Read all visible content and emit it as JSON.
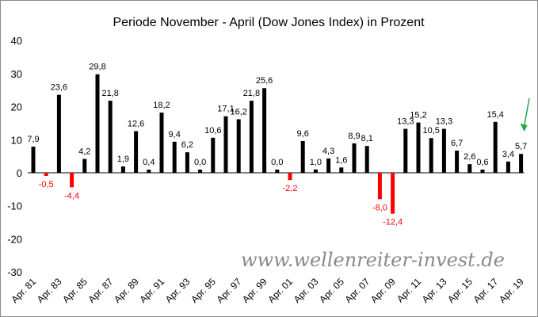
{
  "chart_data": {
    "type": "bar",
    "title": "Periode November - April (Dow Jones Index) in Prozent",
    "xlabel": "",
    "ylabel": "",
    "ylim": [
      -30,
      40
    ],
    "yticks": [
      -30,
      -20,
      -10,
      0,
      10,
      20,
      30,
      40
    ],
    "grid": false,
    "legend": "none",
    "categories": [
      "Apr. 81",
      "Apr. 82",
      "Apr. 83",
      "Apr. 84",
      "Apr. 85",
      "Apr. 86",
      "Apr. 87",
      "Apr. 88",
      "Apr. 89",
      "Apr. 90",
      "Apr. 91",
      "Apr. 92",
      "Apr. 93",
      "Apr. 94",
      "Apr. 95",
      "Apr. 96",
      "Apr. 97",
      "Apr. 98",
      "Apr. 99",
      "Apr. 00",
      "Apr. 01",
      "Apr. 02",
      "Apr. 03",
      "Apr. 04",
      "Apr. 05",
      "Apr. 06",
      "Apr. 07",
      "Apr. 08",
      "Apr. 09",
      "Apr. 10",
      "Apr. 11",
      "Apr. 12",
      "Apr. 13",
      "Apr. 14",
      "Apr. 15",
      "Apr. 16",
      "Apr. 17",
      "Apr. 18",
      "Apr. 19"
    ],
    "xtick_labels": [
      "Apr. 81",
      "Apr. 83",
      "Apr. 85",
      "Apr. 87",
      "Apr. 89",
      "Apr. 91",
      "Apr. 93",
      "Apr. 95",
      "Apr. 97",
      "Apr. 99",
      "Apr. 01",
      "Apr. 03",
      "Apr. 05",
      "Apr. 07",
      "Apr. 09",
      "Apr. 11",
      "Apr. 13",
      "Apr. 15",
      "Apr. 17",
      "Apr. 19"
    ],
    "values": [
      7.9,
      -0.5,
      23.6,
      -4.4,
      4.2,
      29.8,
      21.8,
      1.9,
      12.6,
      0.4,
      18.2,
      9.4,
      6.2,
      0.0,
      10.6,
      17.1,
      16.2,
      21.8,
      25.6,
      0.0,
      -2.2,
      9.6,
      1.0,
      4.3,
      1.6,
      8.9,
      8.1,
      -8.0,
      -12.4,
      13.3,
      15.2,
      10.5,
      13.3,
      6.7,
      2.6,
      0.6,
      15.4,
      3.4,
      5.7
    ],
    "data_labels": [
      "7,9",
      "-0,5",
      "23,6",
      "-4,4",
      "4,2",
      "29,8",
      "21,8",
      "1,9",
      "12,6",
      "0,4",
      "18,2",
      "9,4",
      "6,2",
      "0,0",
      "10,6",
      "17,1",
      "16,2",
      "21,8",
      "25,6",
      "0,0",
      "-2,2",
      "9,6",
      "1,0",
      "4,3",
      "1,6",
      "8,9",
      "8,1",
      "-8,0",
      "-12,4",
      "13,3",
      "15,2",
      "10,5",
      "13,3",
      "6,7",
      "2,6",
      "0,6",
      "15,4",
      "3,4",
      "5,7"
    ],
    "colors": {
      "positive": "#000000",
      "negative": "#ff0000",
      "arrow": "#22aa44",
      "watermark": "#8a8a8a"
    },
    "watermark": "www.wellenreiter-invest.de",
    "annotations": [
      {
        "type": "arrow",
        "target": "Apr. 19",
        "color": "#22aa44"
      }
    ]
  }
}
